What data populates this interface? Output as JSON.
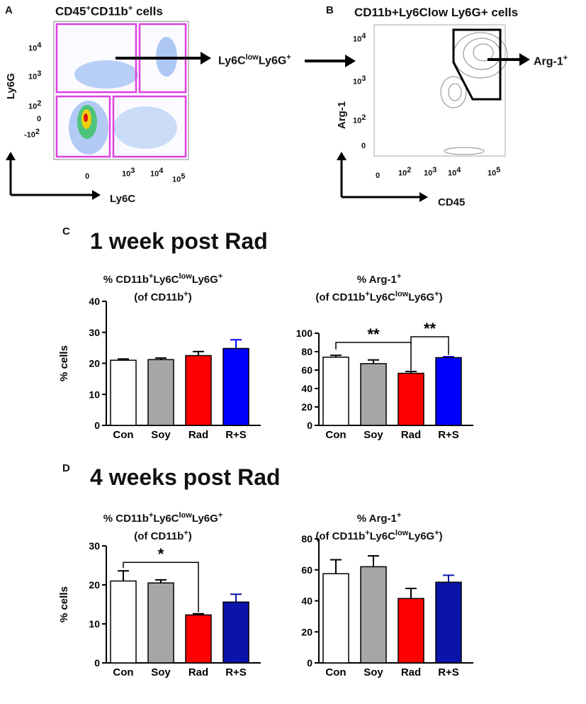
{
  "panels": {
    "A": {
      "letter": "A",
      "title_main": "CD45",
      "title_sup1": "+",
      "title_mid": "CD11b",
      "title_sup2": "+",
      "title_end": " cells",
      "y_axis_label": "Ly6G",
      "x_axis_label": "Ly6C",
      "y_ticks": [
        "10^4",
        "10^3",
        "10^2",
        "0",
        "-10^2"
      ],
      "x_ticks": [
        "0",
        "10^3",
        "10^4",
        "10^5"
      ],
      "gate_result": "Ly6C^low Ly6G^+",
      "gate_color": "#e040e0"
    },
    "B": {
      "letter": "B",
      "title": "CD11b+Ly6Clow Ly6G+ cells",
      "y_axis_label": "Arg-1",
      "x_axis_label": "CD45",
      "y_ticks": [
        "10^4",
        "10^3",
        "10^2",
        "0"
      ],
      "x_ticks": [
        "0",
        "10^2",
        "10^3",
        "10^4",
        "10^5"
      ],
      "gate_result": "Arg-1+"
    },
    "C": {
      "letter": "C",
      "heading": "1 week post Rad"
    },
    "D": {
      "letter": "D",
      "heading": "4 weeks post Rad"
    }
  },
  "colors": {
    "con": "#ffffff",
    "soy": "#a6a6a6",
    "rad": "#ff0000",
    "rs_c": "#0000ff",
    "rs_d": "#0a14a8"
  },
  "chart_data": [
    {
      "type": "bar",
      "panel": "C",
      "title_line1": "% CD11b+Ly6ClowLy6G+",
      "title_line2": "(of CD11b+)",
      "ylabel": "% cells",
      "categories": [
        "Con",
        "Soy",
        "Rad",
        "R+S"
      ],
      "values": [
        21,
        21.2,
        22.5,
        24.8
      ],
      "errors": [
        0.4,
        0.5,
        1.3,
        2.8
      ],
      "ylim": [
        0,
        40
      ],
      "yticks": [
        0,
        10,
        20,
        30,
        40
      ],
      "significance": []
    },
    {
      "type": "bar",
      "panel": "C",
      "title_line1": "% Arg-1+",
      "title_line2": "(of CD11b+Ly6ClowLy6G+)",
      "ylabel": "",
      "categories": [
        "Con",
        "Soy",
        "Rad",
        "R+S"
      ],
      "values": [
        74,
        67,
        56.5,
        73.5
      ],
      "errors": [
        2.0,
        4.0,
        2.0,
        1.0
      ],
      "ylim": [
        0,
        100
      ],
      "yticks": [
        0,
        20,
        40,
        60,
        80,
        100
      ],
      "significance": [
        {
          "from": 0,
          "to": 2,
          "label": "**"
        },
        {
          "from": 2,
          "to": 3,
          "label": "**"
        }
      ]
    },
    {
      "type": "bar",
      "panel": "D",
      "title_line1": "% CD11b+Ly6ClowLy6G+",
      "title_line2": "(of CD11b+)",
      "ylabel": "% cells",
      "categories": [
        "Con",
        "Soy",
        "Rad",
        "R+S"
      ],
      "values": [
        21,
        20.5,
        12.3,
        15.6
      ],
      "errors": [
        2.6,
        0.8,
        0.3,
        2.0
      ],
      "ylim": [
        0,
        30
      ],
      "yticks": [
        0,
        10,
        20,
        30
      ],
      "significance": [
        {
          "from": 0,
          "to": 2,
          "label": "*"
        }
      ]
    },
    {
      "type": "bar",
      "panel": "D",
      "title_line1": "% Arg-1+",
      "title_line2": "(of CD11b+Ly6ClowLy6G+)",
      "ylabel": "",
      "categories": [
        "Con",
        "Soy",
        "Rad",
        "R+S"
      ],
      "values": [
        57.5,
        62,
        41.5,
        52
      ],
      "errors": [
        9.0,
        7.0,
        6.5,
        4.5
      ],
      "ylim": [
        0,
        80
      ],
      "yticks": [
        0,
        20,
        40,
        60,
        80
      ],
      "significance": []
    }
  ]
}
